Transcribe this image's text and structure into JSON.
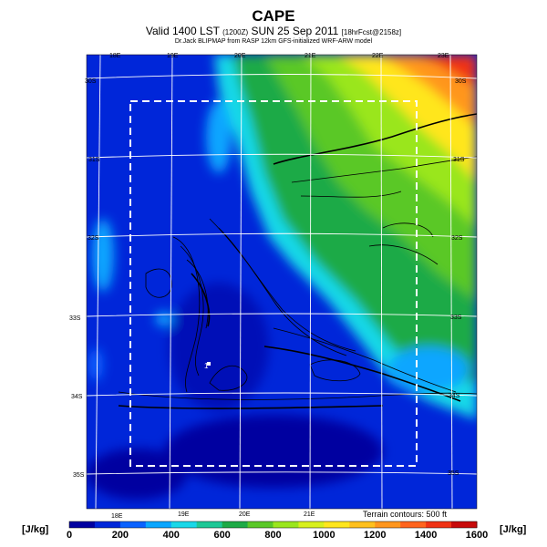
{
  "header": {
    "title": "CAPE",
    "subtitle_main": "Valid 1400 LST",
    "subtitle_small1": "(1200Z)",
    "subtitle_date": "SUN 25 Sep 2011",
    "subtitle_small2": "[18hrFcst@2158z]",
    "credit": "Dr.Jack BLIPMAP from RASP 12km GFS-initialized WRF-ARW model"
  },
  "map": {
    "top_lon_labels": [
      "18E",
      "19E",
      "20E",
      "21E",
      "22E",
      "23E"
    ],
    "bottom_lon_labels": [
      "18E",
      "19E",
      "20E",
      "21E"
    ],
    "left_lat_labels": [
      "30S",
      "31S",
      "32S",
      "33S",
      "34S",
      "35S"
    ],
    "right_lat_labels": [
      "30S",
      "31S",
      "32S",
      "33S",
      "34S",
      "35S"
    ],
    "terrain_note": "Terrain contours: 500 ft",
    "point_marker": "1"
  },
  "colorbar": {
    "unit_left": "[J/kg]",
    "unit_right": "[J/kg]",
    "labels": [
      "0",
      "200",
      "400",
      "600",
      "800",
      "1000",
      "1200",
      "1400",
      "1600"
    ],
    "colors": [
      "#0000a0",
      "#0026d9",
      "#0a62ff",
      "#0aa6ff",
      "#19d8e8",
      "#1ec896",
      "#1eaa46",
      "#5ac828",
      "#9ae61e",
      "#d8f01e",
      "#ffe61e",
      "#ffc01e",
      "#ff961e",
      "#ff641e",
      "#f03214",
      "#c80a0a"
    ]
  }
}
